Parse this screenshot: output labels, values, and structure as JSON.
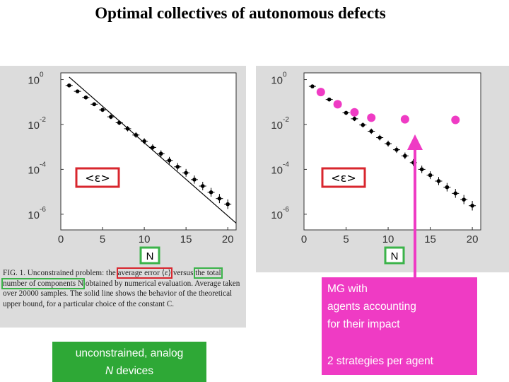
{
  "title": "Optimal collectives of autonomous defects",
  "chart_data": [
    {
      "type": "scatter",
      "name": "left",
      "ylabel": "<ε>",
      "xlabel": "N",
      "xticks": [
        0,
        5,
        10,
        15,
        20
      ],
      "yticks": [
        {
          "label": "10",
          "exp": "0",
          "value": 1
        },
        {
          "label": "10",
          "exp": "-2",
          "value": 0.01
        },
        {
          "label": "10",
          "exp": "-4",
          "value": 0.0001
        },
        {
          "label": "10",
          "exp": "-6",
          "value": 1e-06
        }
      ],
      "xlim": [
        0,
        21
      ],
      "ylim": [
        2e-07,
        2
      ],
      "log_y": true,
      "points": {
        "x": [
          1,
          2,
          3,
          4,
          5,
          6,
          7,
          8,
          9,
          10,
          11,
          12,
          13,
          14,
          15,
          16,
          17,
          18,
          19,
          20
        ],
        "y": [
          0.55,
          0.3,
          0.16,
          0.08,
          0.045,
          0.022,
          0.012,
          0.0065,
          0.0034,
          0.0018,
          0.00095,
          0.0005,
          0.00025,
          0.00013,
          7e-05,
          3.5e-05,
          1.8e-05,
          9.5e-06,
          5e-06,
          2.8e-06
        ]
      },
      "bound_line": {
        "x": [
          1,
          21
        ],
        "y": [
          1.3,
          4e-07
        ]
      }
    },
    {
      "type": "scatter",
      "name": "right",
      "ylabel": "<ε>",
      "xlabel": "N",
      "xticks": [
        0,
        5,
        10,
        15,
        20
      ],
      "yticks": [
        {
          "label": "10",
          "exp": "0",
          "value": 1
        },
        {
          "label": "10",
          "exp": "-2",
          "value": 0.01
        },
        {
          "label": "10",
          "exp": "-4",
          "value": 0.0001
        },
        {
          "label": "10",
          "exp": "-6",
          "value": 1e-06
        }
      ],
      "xlim": [
        0,
        21
      ],
      "ylim": [
        2e-07,
        2
      ],
      "log_y": true,
      "points": {
        "x": [
          1,
          2,
          3,
          4,
          5,
          6,
          7,
          8,
          9,
          10,
          11,
          12,
          13,
          14,
          15,
          16,
          17,
          18,
          19,
          20
        ],
        "y": [
          0.5,
          0.25,
          0.13,
          0.065,
          0.033,
          0.018,
          0.0095,
          0.005,
          0.0026,
          0.0014,
          0.00075,
          0.0004,
          0.0002,
          0.0001,
          5.5e-05,
          3e-05,
          1.6e-05,
          8.5e-06,
          4.5e-06,
          2.4e-06
        ]
      },
      "mg_points": {
        "x": [
          2,
          4,
          6,
          8,
          12,
          18
        ],
        "y": [
          0.28,
          0.08,
          0.035,
          0.02,
          0.017,
          0.016
        ]
      }
    }
  ],
  "caption": {
    "prefix": "FIG. 1.   Unconstrained problem: the",
    "highlight1": "average error ⟨ε⟩",
    "mid1": "versus",
    "highlight2": "the total number of components N",
    "rest": "obtained by numerical evaluation. Average taken over 20000 samples. The solid line shows the behavior of the theoretical upper bound, for a particular choice of the constant C."
  },
  "left_label": {
    "line1": "unconstrained, analog",
    "line2_italic": "N",
    "line2": " devices"
  },
  "right_label": {
    "line1": "MG with",
    "line2": "agents accounting",
    "line3": "for their impact",
    "line4": "2 strategies per agent"
  },
  "colors": {
    "red": "#d8262e",
    "green": "#3bb34a",
    "pink": "#ef3bc4",
    "panel": "#dcdcdc"
  }
}
